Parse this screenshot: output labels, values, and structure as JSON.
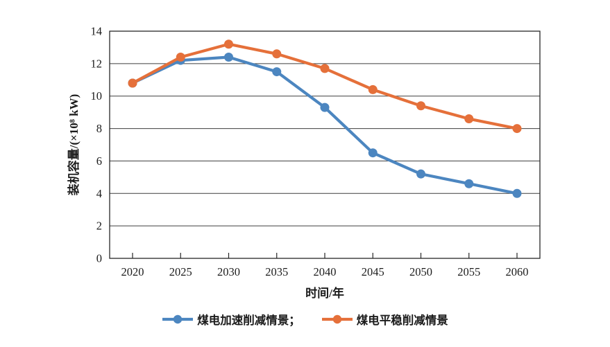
{
  "chart_data": {
    "type": "line",
    "title": "",
    "categories": [
      "2020",
      "2025",
      "2030",
      "2035",
      "2040",
      "2045",
      "2050",
      "2055",
      "2060"
    ],
    "series": [
      {
        "name": "煤电加速削减情景",
        "color": "#4C86C0",
        "values": [
          10.8,
          12.2,
          12.4,
          11.5,
          9.3,
          6.5,
          5.2,
          4.6,
          4.0
        ]
      },
      {
        "name": "煤电平稳削减情景",
        "color": "#E5703A",
        "values": [
          10.8,
          12.4,
          13.2,
          12.6,
          11.7,
          10.4,
          9.4,
          8.6,
          8.0
        ]
      }
    ],
    "legend_labels": [
      "煤电加速削减情景；",
      "煤电平稳削减情景"
    ],
    "xlabel": "时间/年",
    "ylabel": "装机容量/(×10⁸ kW)",
    "ylim": [
      0,
      14
    ],
    "ytick_step": 2,
    "yticks": [
      0,
      2,
      4,
      6,
      8,
      10,
      12,
      14
    ],
    "grid": "horizontal",
    "legend_position": "bottom",
    "marker": "circle",
    "axis_color": "#262626",
    "gridline_color": "#3d3d3d",
    "text_color": "#1c1c1c"
  }
}
